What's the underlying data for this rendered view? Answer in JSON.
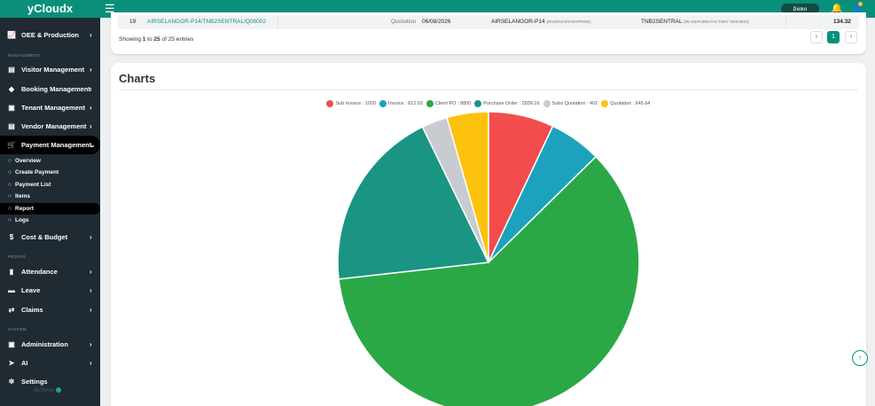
{
  "topbar": {
    "brand": "yCloudx",
    "menu_icon": "☰",
    "user_chip": "Demo Intern",
    "bell_icon": "🔔",
    "avatar_icon": "👤"
  },
  "sidebar": {
    "items": [
      {
        "id": "oee",
        "icon": "📈",
        "label": "OEE & Production",
        "chev": "›"
      },
      {
        "id": "visitor",
        "icon": "▤",
        "label": "Visitor Management",
        "chev": "›"
      },
      {
        "id": "booking",
        "icon": "◆",
        "label": "Booking Management",
        "chev": "›"
      },
      {
        "id": "tenant",
        "icon": "▣",
        "label": "Tenant Management",
        "chev": "›"
      },
      {
        "id": "vendor",
        "icon": "▤",
        "label": "Vendor Management",
        "chev": "›"
      },
      {
        "id": "payment",
        "icon": "🛒",
        "label": "Payment Management",
        "chev": "⌄"
      },
      {
        "id": "cost",
        "icon": "$",
        "label": "Cost & Budget",
        "chev": "›"
      },
      {
        "id": "attendance",
        "icon": "▮",
        "label": "Attendance",
        "chev": "›"
      },
      {
        "id": "leave",
        "icon": "▬",
        "label": "Leave",
        "chev": "›"
      },
      {
        "id": "claims",
        "icon": "⇄",
        "label": "Claims",
        "chev": "›"
      },
      {
        "id": "administration",
        "icon": "▣",
        "label": "Administration",
        "chev": "›"
      },
      {
        "id": "ai",
        "icon": "➤",
        "label": "AI",
        "chev": "›"
      },
      {
        "id": "settings",
        "icon": "✲",
        "label": "Settings",
        "chev": ""
      }
    ],
    "section_headers": {
      "management": "MANAGEMENT",
      "people": "PEOPLE",
      "system": "SYSTEM"
    },
    "subitems": [
      {
        "icon": "○",
        "label": "Overview"
      },
      {
        "icon": "○",
        "label": "Create Payment"
      },
      {
        "icon": "○",
        "label": "Payment List"
      },
      {
        "icon": "○",
        "label": "Items"
      },
      {
        "icon": "○",
        "label": "Report"
      },
      {
        "icon": "○",
        "label": "Logs"
      }
    ],
    "footer": "@yCloudx"
  },
  "table": {
    "row": {
      "no": "19",
      "ref": "AIRSELANGOR-P14/TNB2SENTRAL/Q00002",
      "type": "Quotation",
      "date": "06/08/2026",
      "from": "AIRSELANGOR-P14",
      "from_sub": "(RUEENI ENTERPRISE)",
      "to": "TNB2SENTRAL",
      "to_sub": "(99 UNIFORM FACTORY SDN BHD)",
      "amount": "134.32"
    },
    "showing_pre": "Showing ",
    "showing_from": "1",
    "showing_mid": " to ",
    "showing_to": "25",
    "showing_post": " of 25 entries",
    "pagination": {
      "prev": "‹",
      "current": "1",
      "next": "›"
    }
  },
  "charts": {
    "title": "Charts",
    "scroll_top_icon": "↑"
  },
  "chart_data": {
    "type": "pie",
    "series": [
      {
        "name": "Sub Invoice",
        "label": "Sub Invoice : 1020",
        "value": 1020,
        "color": "#f24c4c"
      },
      {
        "name": "Invoice",
        "label": "Invoice : 812.93",
        "value": 812.93,
        "color": "#1ca2bd"
      },
      {
        "name": "Client PO",
        "label": "Client PO : 8800",
        "value": 8800,
        "color": "#2aa846"
      },
      {
        "name": "Purchase Order",
        "label": "Purchase Order : 2839.16",
        "value": 2839.16,
        "color": "#1a9483"
      },
      {
        "name": "Subs Quotation",
        "label": "Subs Quotation : 402",
        "value": 402,
        "color": "#c8ccd0"
      },
      {
        "name": "Quotation",
        "label": "Quotation : 645.64",
        "value": 645.64,
        "color": "#fdc20e"
      }
    ]
  }
}
